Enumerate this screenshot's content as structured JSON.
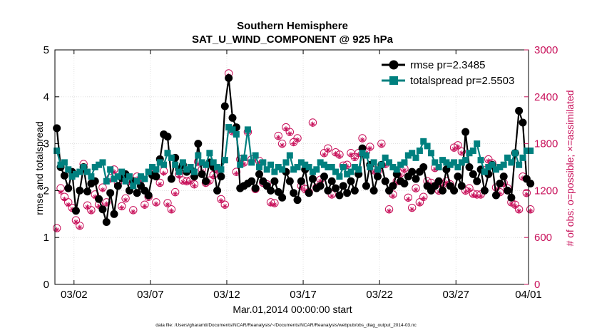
{
  "chart_data": {
    "type": "line",
    "title": "Southern Hemisphere",
    "subtitle": "SAT_U_WIND_COMPONENT @ 925 hPa",
    "xlabel": "Mar.01,2014 00:00:00 start",
    "ylabel": "rmse and totalspread",
    "ylabel_right": "# of obs: o=possible; ×=assimilated",
    "footnote": "data file: /Users/gharamti/Documents/NCAR/Reanalysis/~/Documents/NCAR/Reanalysis/webpub/obs_diag_output_2014-03.nc",
    "xlim": [
      0,
      124
    ],
    "ylim": [
      0,
      5
    ],
    "ylim_right": [
      0,
      3000
    ],
    "x_ticks": [
      {
        "x": 5,
        "label": "03/02"
      },
      {
        "x": 25,
        "label": "03/07"
      },
      {
        "x": 45,
        "label": "03/12"
      },
      {
        "x": 65,
        "label": "03/17"
      },
      {
        "x": 85,
        "label": "03/22"
      },
      {
        "x": 105,
        "label": "03/27"
      },
      {
        "x": 125,
        "label": "04/01"
      }
    ],
    "y_ticks": [
      "0",
      "1",
      "2",
      "3",
      "4",
      "5"
    ],
    "y_ticks_right": [
      "0",
      "600",
      "1200",
      "1800",
      "2400",
      "3000"
    ],
    "legend_location": "top-right",
    "colors": {
      "rmse": "#000000",
      "totalspread": "#00807f",
      "obs": "#c8105a"
    },
    "series": [
      {
        "name": "rmse pr=2.3485",
        "marker": "circle",
        "values": [
          3.33,
          2.5,
          2.32,
          2.05,
          2.4,
          1.57,
          2.0,
          2.5,
          1.98,
          2.15,
          2.2,
          1.82,
          1.6,
          1.33,
          1.95,
          1.5,
          2.1,
          2.27,
          2.35,
          2.0,
          2.2,
          1.95,
          2.1,
          2.0,
          1.9,
          2.33,
          2.3,
          2.67,
          3.2,
          3.15,
          2.25,
          2.7,
          2.45,
          2.55,
          2.4,
          2.45,
          2.3,
          3.0,
          2.35,
          2.2,
          2.6,
          2.5,
          2.0,
          2.3,
          3.8,
          4.4,
          3.55,
          3.35,
          2.05,
          2.1,
          2.15,
          2.2,
          2.05,
          2.35,
          2.2,
          2.1,
          2.0,
          2.2,
          1.97,
          1.85,
          2.4,
          2.2,
          1.95,
          1.8,
          2.2,
          2.45,
          1.95,
          2.25,
          2.05,
          2.1,
          2.3,
          2.0,
          2.2,
          2.05,
          1.9,
          2.1,
          1.95,
          2.2,
          2.0,
          2.35,
          2.9,
          2.1,
          2.55,
          2.0,
          2.3,
          2.55,
          2.2,
          2.0,
          2.1,
          2.35,
          2.2,
          2.15,
          2.3,
          2.4,
          2.25,
          2.4,
          2.5,
          2.1,
          2.0,
          2.1,
          2.2,
          2.0,
          2.45,
          2.1,
          2.0,
          2.3,
          2.1,
          3.25,
          2.5,
          2.35,
          2.2,
          2.45,
          2.0,
          2.35,
          2.55,
          1.9,
          2.15,
          2.3,
          2.0,
          1.85,
          2.8,
          3.7,
          3.45,
          2.25,
          2.15
        ]
      },
      {
        "name": "totalspread pr=2.5503",
        "marker": "square",
        "values": [
          2.85,
          2.55,
          2.6,
          2.45,
          2.3,
          2.35,
          2.4,
          2.5,
          2.4,
          2.3,
          2.5,
          2.55,
          2.6,
          2.2,
          2.45,
          2.25,
          2.3,
          2.4,
          2.2,
          2.3,
          2.1,
          2.2,
          2.3,
          2.25,
          2.4,
          2.5,
          2.45,
          2.6,
          2.55,
          2.8,
          2.7,
          2.55,
          2.4,
          2.6,
          2.45,
          2.5,
          2.4,
          2.75,
          2.6,
          2.55,
          2.8,
          2.6,
          2.5,
          2.45,
          2.65,
          3.35,
          3.3,
          3.2,
          2.55,
          2.7,
          3.3,
          2.6,
          2.75,
          2.5,
          2.6,
          2.45,
          2.55,
          2.4,
          2.5,
          2.45,
          2.6,
          2.75,
          2.45,
          2.5,
          2.6,
          2.55,
          2.5,
          2.4,
          2.45,
          2.6,
          2.55,
          2.5,
          2.5,
          2.4,
          2.3,
          2.5,
          2.35,
          2.4,
          2.5,
          2.45,
          2.8,
          2.75,
          2.5,
          2.6,
          2.45,
          2.55,
          2.7,
          2.6,
          2.5,
          2.45,
          2.55,
          2.6,
          2.75,
          2.8,
          2.7,
          2.85,
          3.05,
          2.95,
          2.8,
          2.6,
          2.5,
          2.65,
          2.6,
          2.55,
          2.6,
          2.5,
          2.6,
          2.65,
          2.8,
          2.85,
          3.0,
          2.65,
          2.4,
          2.5,
          2.55,
          2.45,
          2.5,
          2.55,
          2.7,
          2.6,
          2.8,
          2.55,
          2.7,
          2.85,
          2.85
        ]
      },
      {
        "name": "possible",
        "axis": "right",
        "marker": "open-circle",
        "values": [
          720,
          1230,
          1120,
          1050,
          980,
          820,
          750,
          1540,
          1010,
          950,
          1150,
          1020,
          1240,
          1050,
          1360,
          1470,
          1300,
          1000,
          1100,
          1320,
          950,
          1380,
          1340,
          1020,
          1120,
          1410,
          1050,
          1300,
          1450,
          1040,
          960,
          1180,
          1410,
          1330,
          1320,
          1330,
          1280,
          1570,
          1470,
          1300,
          1330,
          1400,
          1470,
          1090,
          1020,
          2700,
          1960,
          1440,
          1600,
          1560,
          1950,
          1600,
          1220,
          1580,
          1300,
          1280,
          1050,
          1040,
          1900,
          1800,
          2010,
          1950,
          1820,
          1870,
          1260,
          1220,
          1180,
          2070,
          1240,
          1340,
          1680,
          1740,
          1150,
          1690,
          1660,
          1520,
          1530,
          1680,
          1630,
          1680,
          1870,
          1700,
          1760,
          1460,
          1450,
          1800,
          1540,
          960,
          1150,
          1320,
          1420,
          1480,
          1110,
          980,
          1230,
          1050,
          1120,
          1320,
          1300,
          1490,
          1200,
          1280,
          1320,
          1280,
          1750,
          1780,
          1700,
          1200,
          1230,
          1160,
          1150,
          1150,
          1460,
          1600,
          1550,
          1240,
          1180,
          1300,
          1230,
          1050,
          1020,
          960,
          1380,
          1170,
          960
        ]
      },
      {
        "name": "assimilated",
        "axis": "right",
        "marker": "asterisk",
        "values": [
          700,
          1180,
          1090,
          1020,
          960,
          800,
          730,
          1510,
          990,
          930,
          1120,
          1000,
          1210,
          1030,
          1330,
          1440,
          1280,
          980,
          1080,
          1300,
          930,
          1350,
          1320,
          1000,
          1100,
          1380,
          1030,
          1280,
          1420,
          1020,
          940,
          1160,
          1380,
          1310,
          1300,
          1310,
          1260,
          1540,
          1450,
          1280,
          1310,
          1380,
          1450,
          1070,
          1000,
          2670,
          1940,
          1420,
          1580,
          1540,
          1930,
          1580,
          1200,
          1560,
          1280,
          1260,
          1030,
          1020,
          1880,
          1780,
          1990,
          1930,
          1800,
          1850,
          1240,
          1200,
          1160,
          2050,
          1220,
          1320,
          1660,
          1720,
          1130,
          1670,
          1640,
          1500,
          1510,
          1660,
          1610,
          1660,
          1850,
          1680,
          1740,
          1440,
          1430,
          1780,
          1520,
          940,
          1130,
          1300,
          1400,
          1460,
          1090,
          960,
          1210,
          1030,
          1100,
          1300,
          1280,
          1470,
          1180,
          1260,
          1300,
          1260,
          1730,
          1760,
          1680,
          1180,
          1210,
          1140,
          1130,
          1130,
          1440,
          1580,
          1530,
          1220,
          1160,
          1280,
          1210,
          1030,
          1000,
          940,
          1360,
          1150,
          940
        ]
      }
    ]
  }
}
